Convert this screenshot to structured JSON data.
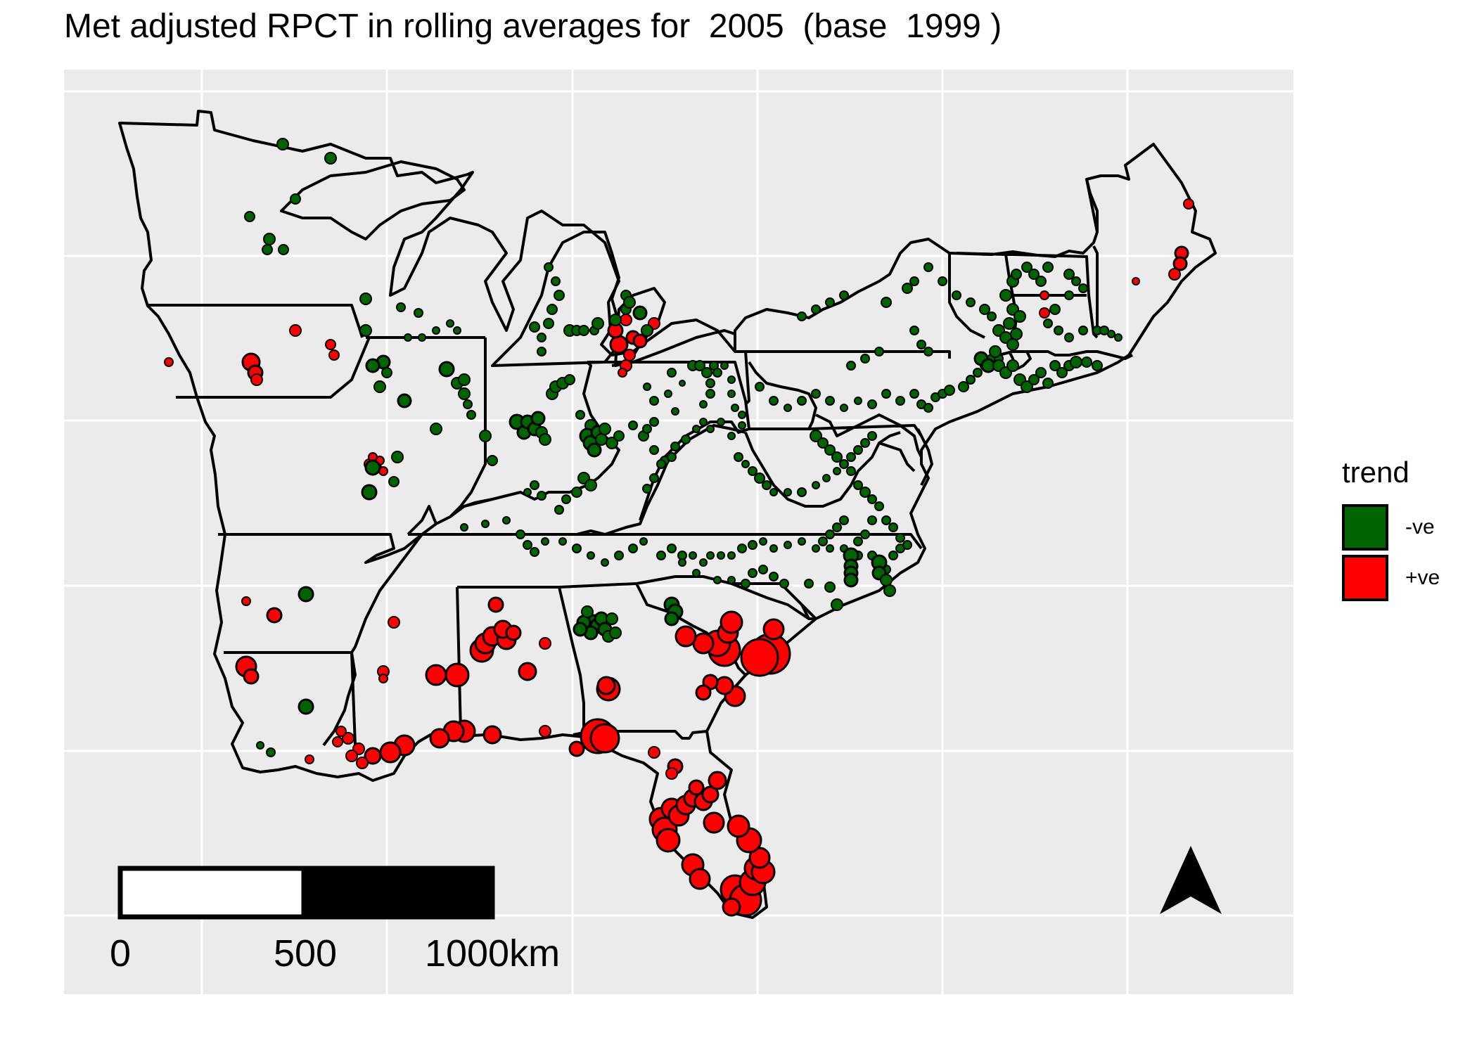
{
  "title": "Met adjusted RPCT in rolling averages for  2005  (base  1999 )",
  "legend": {
    "title": "trend",
    "items": [
      {
        "label": "-ve",
        "color": "#006400"
      },
      {
        "label": "+ve",
        "color": "#ff0000"
      }
    ]
  },
  "scale_bar": {
    "labels": [
      "0",
      "500",
      "1000km"
    ]
  },
  "north_arrow": "north-arrow-icon",
  "colors": {
    "panel": "#ebebeb",
    "grid": "#ffffff",
    "outline": "#000000"
  }
}
